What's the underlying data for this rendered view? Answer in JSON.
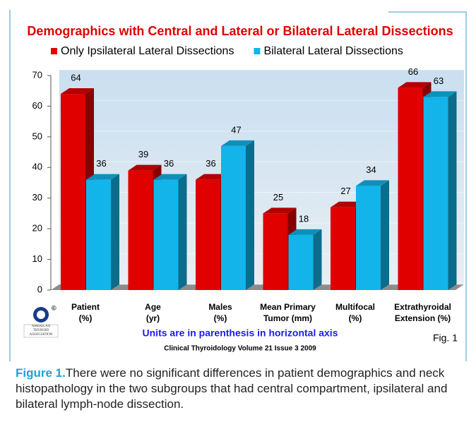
{
  "chart_data": {
    "type": "bar3d",
    "title": "Demographics with Central and Lateral or Bilateral Lateral Dissections",
    "categories": [
      [
        "Patient",
        "(%)"
      ],
      [
        "Age",
        "(yr)"
      ],
      [
        "Males",
        "(%)"
      ],
      [
        "Mean Primary",
        "Tumor (mm)"
      ],
      [
        "Multifocal",
        "(%)"
      ],
      [
        "Extrathyroidal",
        "Extension (%)"
      ]
    ],
    "series": [
      {
        "name": "Only Ipsilateral Lateral Dissections",
        "color": "#e00000",
        "values": [
          64,
          39,
          36,
          25,
          27,
          66
        ]
      },
      {
        "name": "Bilateral  Lateral Dissections",
        "color": "#12b4ea",
        "values": [
          36,
          36,
          47,
          18,
          34,
          63
        ]
      }
    ],
    "ylim": [
      0,
      70
    ],
    "yticks": [
      0,
      10,
      20,
      30,
      40,
      50,
      60,
      70
    ],
    "grid": true,
    "note": "Units are in parenthesis in horizontal axis",
    "source": "Clinical Thyroidology Volume 21 Issue 3 2009",
    "fig_label": "Fig. 1",
    "logo_text": "AMERICAN THYROID ASSOCIATION"
  },
  "caption": {
    "label": "Figure 1.",
    "text": "There were no significant differences in patient demographics and neck histopathology in the two subgroups that had central compartment, ipsilateral and bilateral lymph-node dissection."
  }
}
